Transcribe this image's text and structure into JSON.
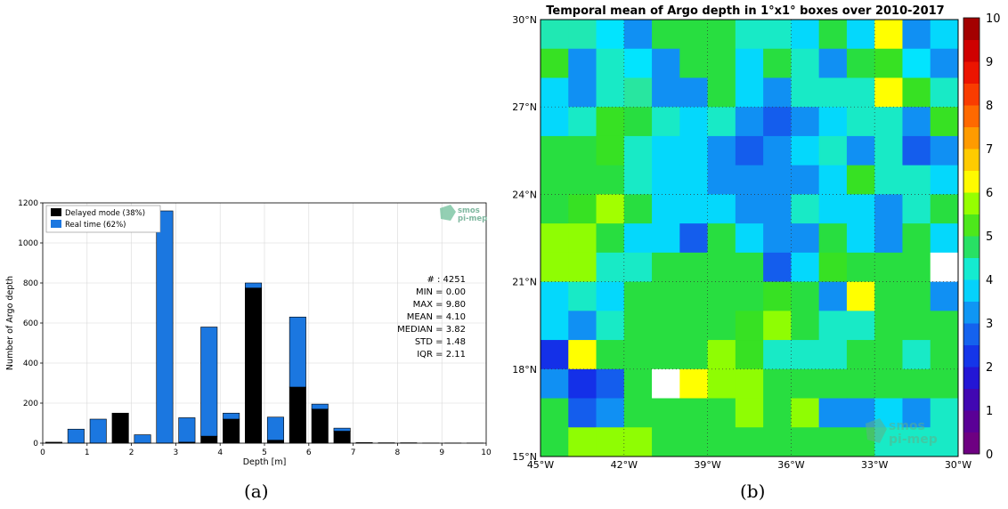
{
  "captions": {
    "left": "(a)",
    "right": "(b)"
  },
  "logo": {
    "line1": "smos",
    "line2": "pi-mep"
  },
  "chart_data": [
    {
      "type": "bar",
      "subtype": "stacked",
      "xlabel": "Depth [m]",
      "ylabel": "Number of Argo depth",
      "xlim": [
        0,
        10
      ],
      "ylim": [
        0,
        1200
      ],
      "xticks": [
        0,
        1,
        2,
        3,
        4,
        5,
        6,
        7,
        8,
        9,
        10
      ],
      "yticks": [
        0,
        200,
        400,
        600,
        800,
        1000,
        1200
      ],
      "grid": true,
      "legend_position": "top-left",
      "bar_width": 0.37,
      "x": [
        0.25,
        0.75,
        1.25,
        1.75,
        2.25,
        2.75,
        3.25,
        3.75,
        4.25,
        4.75,
        5.25,
        5.75,
        6.25,
        6.75,
        7.25,
        7.75,
        8.25,
        8.75,
        9.25,
        9.75
      ],
      "series": [
        {
          "name": "Delayed mode (38%)",
          "color": "#000000",
          "values": [
            5,
            0,
            0,
            150,
            0,
            0,
            5,
            35,
            120,
            775,
            15,
            280,
            170,
            60,
            3,
            2,
            2,
            1,
            1,
            1
          ]
        },
        {
          "name": "Real time (62%)",
          "color": "#1b77e0",
          "values": [
            0,
            70,
            120,
            0,
            42,
            1160,
            122,
            545,
            30,
            25,
            115,
            350,
            25,
            15,
            0,
            0,
            0,
            0,
            0,
            0
          ]
        }
      ],
      "stats": [
        "# : 4251",
        "MIN = 0.00",
        "MAX =  9.80",
        "MEAN = 4.10",
        "MEDIAN = 3.82",
        "STD = 1.48",
        "IQR = 2.11"
      ]
    },
    {
      "type": "heatmap",
      "title": "Temporal mean of Argo depth in 1°x1° boxes over 2010-2017",
      "xlim": [
        -45,
        -30
      ],
      "ylim": [
        15,
        30
      ],
      "xticks": [
        "45°W",
        "42°W",
        "39°W",
        "36°W",
        "33°W",
        "30°W"
      ],
      "yticks": [
        "15°N",
        "18°N",
        "21°N",
        "24°N",
        "27°N",
        "30°N"
      ],
      "grid": "dotted",
      "colorbar": {
        "min": 0,
        "max": 10,
        "ticks": [
          0,
          1,
          2,
          3,
          4,
          5,
          6,
          7,
          8,
          9,
          10
        ]
      },
      "rows_north_to_south": [
        [
          4.4,
          4.4,
          3.9,
          3.2,
          4.9,
          4.9,
          4.9,
          4.3,
          4.3,
          3.8,
          4.9,
          3.8,
          6.2,
          3.2,
          3.8
        ],
        [
          5.1,
          3.2,
          4.3,
          3.9,
          3.2,
          4.9,
          4.9,
          3.8,
          4.9,
          4.3,
          3.2,
          4.9,
          5.1,
          3.9,
          3.2
        ],
        [
          3.8,
          3.2,
          4.3,
          4.5,
          3.2,
          3.2,
          4.9,
          3.8,
          3.2,
          4.3,
          4.3,
          4.3,
          6.2,
          5.1,
          4.3
        ],
        [
          3.8,
          4.3,
          5.1,
          4.9,
          4.3,
          3.8,
          4.3,
          3.2,
          2.7,
          3.2,
          3.8,
          4.3,
          4.3,
          3.2,
          5.1
        ],
        [
          4.9,
          4.9,
          5.1,
          4.3,
          3.8,
          3.8,
          3.2,
          2.7,
          3.2,
          3.8,
          4.3,
          3.2,
          4.3,
          2.7,
          3.2
        ],
        [
          4.9,
          4.9,
          4.9,
          4.3,
          3.8,
          3.8,
          3.2,
          3.2,
          3.2,
          3.2,
          3.8,
          5.1,
          4.3,
          4.3,
          3.8
        ],
        [
          4.9,
          5.1,
          5.8,
          4.9,
          3.8,
          3.8,
          3.8,
          3.2,
          3.2,
          4.3,
          3.8,
          3.8,
          3.2,
          4.3,
          4.9
        ],
        [
          5.7,
          5.7,
          4.9,
          3.8,
          3.8,
          2.7,
          4.9,
          3.8,
          3.2,
          3.2,
          4.9,
          3.8,
          3.2,
          4.9,
          3.8
        ],
        [
          5.7,
          5.7,
          4.3,
          4.3,
          4.9,
          4.9,
          4.9,
          4.9,
          2.7,
          3.8,
          5.1,
          4.9,
          4.9,
          4.9,
          null
        ],
        [
          3.8,
          4.3,
          3.8,
          4.9,
          4.9,
          4.9,
          4.9,
          4.9,
          5.1,
          4.9,
          3.2,
          6.2,
          4.9,
          4.9,
          3.2
        ],
        [
          3.8,
          3.2,
          4.3,
          4.9,
          4.9,
          4.9,
          4.9,
          5.1,
          5.7,
          4.9,
          4.3,
          4.3,
          4.9,
          4.9,
          4.9
        ],
        [
          2.2,
          6.2,
          4.9,
          4.9,
          4.9,
          4.9,
          5.7,
          5.1,
          4.3,
          4.3,
          4.3,
          4.9,
          4.9,
          4.3,
          4.9
        ],
        [
          3.2,
          2.2,
          2.7,
          4.9,
          null,
          6.2,
          5.7,
          5.7,
          4.9,
          4.9,
          4.9,
          4.9,
          4.9,
          4.9,
          4.9
        ],
        [
          4.9,
          2.7,
          3.2,
          4.9,
          4.9,
          4.9,
          4.9,
          5.7,
          4.9,
          5.7,
          3.2,
          3.2,
          3.8,
          3.2,
          4.3
        ],
        [
          4.9,
          5.7,
          5.7,
          5.7,
          4.9,
          4.9,
          4.9,
          4.9,
          4.9,
          4.9,
          4.9,
          4.9,
          4.3,
          4.3,
          4.3
        ]
      ]
    }
  ]
}
